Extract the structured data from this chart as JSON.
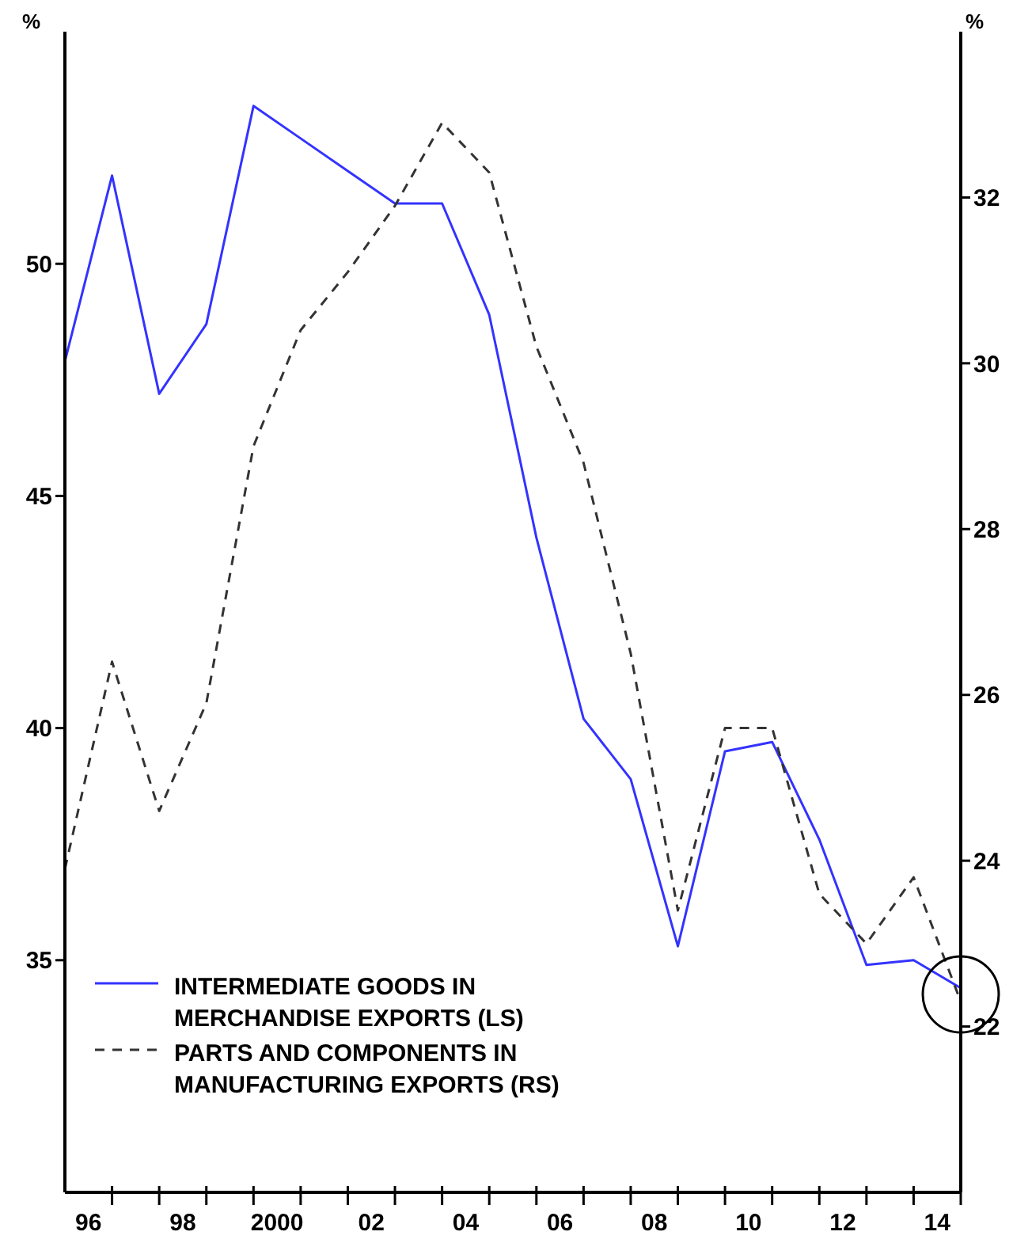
{
  "chart_data": {
    "type": "line",
    "ylabel": "%",
    "y2label": "%",
    "x": [
      1995.5,
      1996.5,
      1997.5,
      1998.5,
      1999.5,
      2000.5,
      2001.5,
      2002.5,
      2003.5,
      2004.5,
      2005.5,
      2006.5,
      2007.5,
      2008.5,
      2009.5,
      2010.5,
      2011.5,
      2012.5,
      2013.5,
      2014.5
    ],
    "series": [
      {
        "name": "INTERMEDIATE GOODS IN MERCHANDISE EXPORTS (LS)",
        "color": "#3333ff",
        "line_style": "solid",
        "values": [
          47.9,
          51.9,
          47.2,
          48.7,
          53.4,
          52.7,
          52.0,
          51.3,
          51.3,
          48.9,
          44.1,
          40.2,
          38.9,
          35.3,
          39.5,
          39.7,
          37.6,
          34.9,
          35.0,
          34.4
        ]
      },
      {
        "name": "PARTS AND COMPONENTS IN MANUFACTURING EXPORTS (RS)",
        "color": "#333333",
        "line_style": "dashed",
        "axis": "y2",
        "values": [
          23.9,
          26.4,
          24.6,
          25.9,
          29.0,
          30.4,
          31.1,
          31.9,
          32.9,
          32.3,
          30.2,
          28.8,
          26.5,
          23.4,
          25.6,
          25.6,
          23.6,
          23.0,
          23.8,
          22.3
        ]
      }
    ],
    "xlim": [
      1995.5,
      2014.5
    ],
    "xticks": [
      {
        "value": 1996,
        "label": "96"
      },
      {
        "value": 1996.5,
        "label": null
      },
      {
        "value": 1997.5,
        "label": null
      },
      {
        "value": 1998,
        "label": "98"
      },
      {
        "value": 1998.5,
        "label": null
      },
      {
        "value": 1999.5,
        "label": null
      },
      2000,
      {
        "value": 2000.5,
        "label": null
      },
      {
        "value": 2001.5,
        "label": null
      },
      {
        "value": 2002,
        "label": "02"
      },
      {
        "value": 2002.5,
        "label": null
      },
      {
        "value": 2003.5,
        "label": null
      },
      {
        "value": 2004,
        "label": "04"
      },
      {
        "value": 2004.5,
        "label": null
      },
      {
        "value": 2005.5,
        "label": null
      },
      {
        "value": 2006,
        "label": "06"
      },
      {
        "value": 2006.5,
        "label": null
      },
      {
        "value": 2007.5,
        "label": null
      },
      {
        "value": 2008,
        "label": "08"
      },
      {
        "value": 2008.5,
        "label": null
      },
      {
        "value": 2009.5,
        "label": null
      },
      {
        "value": 2010,
        "label": "10"
      },
      {
        "value": 2010.5,
        "label": null
      },
      {
        "value": 2011.5,
        "label": null
      },
      {
        "value": 2012,
        "label": "12"
      },
      {
        "value": 2012.5,
        "label": null
      },
      {
        "value": 2013.5,
        "label": null
      },
      {
        "value": 2014,
        "label": "14"
      },
      {
        "value": 2014.5,
        "label": null
      }
    ],
    "ylim": [
      30,
      55
    ],
    "yticks": [
      35,
      40,
      45,
      50
    ],
    "y2lim": [
      20,
      34
    ],
    "y2ticks": [
      22,
      24,
      26,
      28,
      30,
      32
    ],
    "legend": "bottom left",
    "grid": false,
    "marker": "none"
  }
}
